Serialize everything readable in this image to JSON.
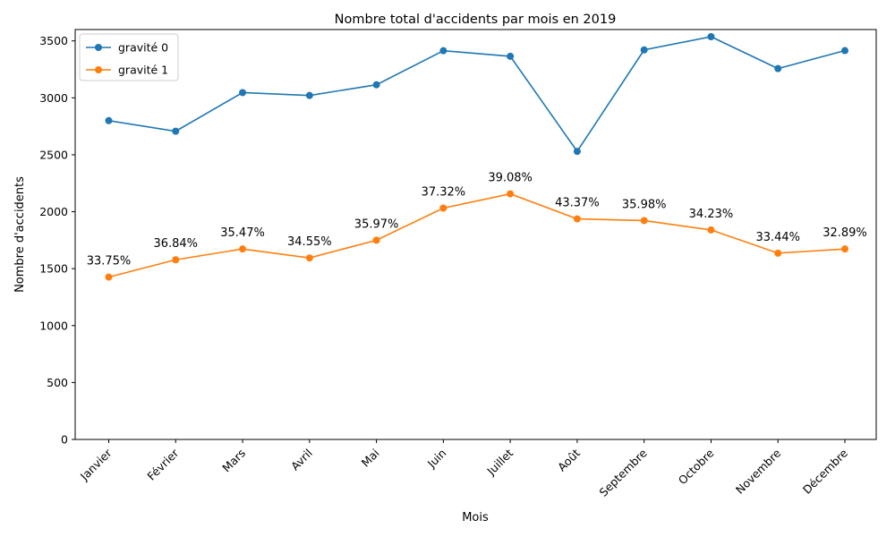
{
  "chart_data": {
    "type": "line",
    "title": "Nombre total d'accidents par mois en 2019",
    "xlabel": "Mois",
    "ylabel": "Nombre d'accidents",
    "categories": [
      "Janvier",
      "Février",
      "Mars",
      "Avril",
      "Mai",
      "Juin",
      "Juillet",
      "Août",
      "Septembre",
      "Octobre",
      "Novembre",
      "Décembre"
    ],
    "ylim": [
      0,
      3600
    ],
    "yticks": [
      "0",
      "500",
      "1000",
      "1500",
      "2000",
      "2500",
      "3000",
      "3500"
    ],
    "grid": false,
    "legend_position": "top-left",
    "series": [
      {
        "name": "gravité 0",
        "color": "#1f77b4",
        "values": [
          2800,
          2707,
          3046,
          3021,
          3115,
          3414,
          3365,
          2530,
          3421,
          3537,
          3257,
          3415
        ]
      },
      {
        "name": "gravité 1",
        "color": "#ff7f0e",
        "values": [
          1426,
          1578,
          1673,
          1594,
          1750,
          2032,
          2157,
          1937,
          1922,
          1840,
          1636,
          1673
        ]
      }
    ],
    "annotations": [
      "33.75%",
      "36.84%",
      "35.47%",
      "34.55%",
      "35.97%",
      "37.32%",
      "39.08%",
      "43.37%",
      "35.98%",
      "34.23%",
      "33.44%",
      "32.89%"
    ]
  }
}
